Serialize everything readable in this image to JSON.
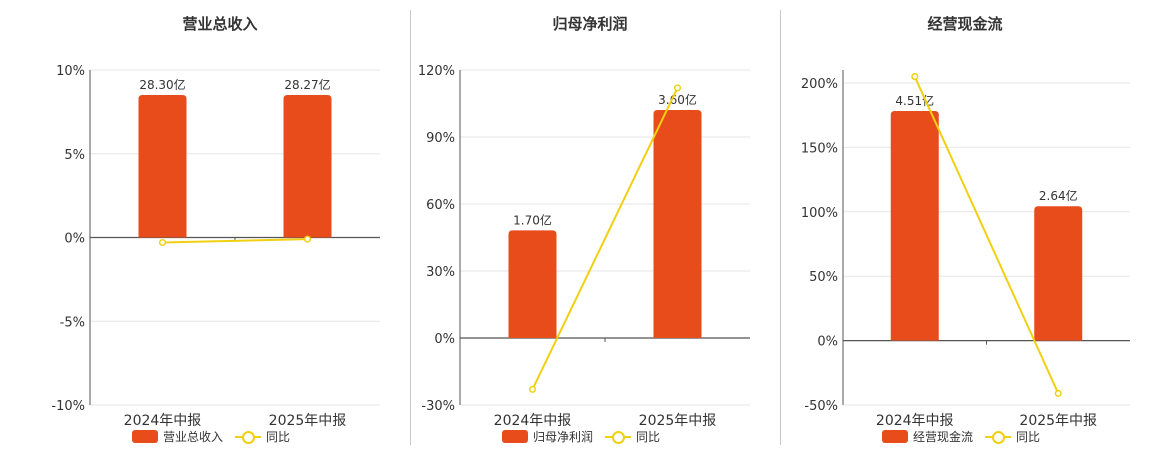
{
  "colors": {
    "bar": "#e84c1b",
    "line": "#f0d010",
    "axis": "#555555",
    "grid": "#e6e6e6"
  },
  "legend": {
    "line_label": "同比"
  },
  "chart_data": [
    {
      "type": "bar",
      "title": "营业总收入",
      "categories": [
        "2024年中报",
        "2025年中报"
      ],
      "series": [
        {
          "name": "营业总收入",
          "type": "bar",
          "values": [
            28.3,
            28.27
          ],
          "labels": [
            "28.30亿",
            "28.27亿"
          ],
          "axis": "fixed-height"
        },
        {
          "name": "同比",
          "type": "line",
          "values": [
            -0.3,
            -0.1
          ]
        }
      ],
      "yticks": [
        "10%",
        "5%",
        "0%",
        "-5%",
        "-10%"
      ],
      "ylim": [
        -10,
        10
      ],
      "grid": true,
      "legend_position": "bottom"
    },
    {
      "type": "bar",
      "title": "归母净利润",
      "categories": [
        "2024年中报",
        "2025年中报"
      ],
      "series": [
        {
          "name": "归母净利润",
          "type": "bar",
          "values": [
            1.7,
            3.6
          ],
          "labels": [
            "1.70亿",
            "3.60亿"
          ]
        },
        {
          "name": "同比",
          "type": "line",
          "values": [
            -23,
            112
          ]
        }
      ],
      "yticks": [
        "120%",
        "90%",
        "60%",
        "30%",
        "0%",
        "-30%"
      ],
      "ylim": [
        -30,
        120
      ],
      "grid": true,
      "legend_position": "bottom"
    },
    {
      "type": "bar",
      "title": "经营现金流",
      "categories": [
        "2024年中报",
        "2025年中报"
      ],
      "series": [
        {
          "name": "经营现金流",
          "type": "bar",
          "values": [
            4.51,
            2.64
          ],
          "labels": [
            "4.51亿",
            "2.64亿"
          ]
        },
        {
          "name": "同比",
          "type": "line",
          "values": [
            205,
            -41
          ]
        }
      ],
      "yticks": [
        "200%",
        "150%",
        "100%",
        "50%",
        "0%",
        "-50%"
      ],
      "ylim": [
        -50,
        210
      ],
      "grid": true,
      "legend_position": "bottom"
    }
  ]
}
